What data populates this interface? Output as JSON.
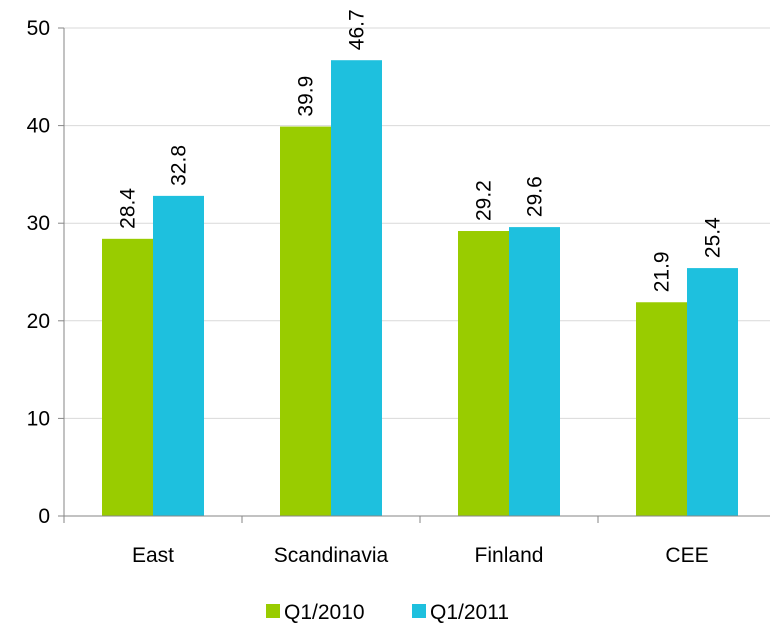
{
  "chart_data": {
    "type": "bar",
    "title": "",
    "xlabel": "",
    "ylabel": "",
    "categories": [
      "East",
      "Scandinavia",
      "Finland",
      "CEE"
    ],
    "series": [
      {
        "name": "Q1/2010",
        "color": "#99cc00",
        "values": [
          28.4,
          39.9,
          29.2,
          21.9
        ]
      },
      {
        "name": "Q1/2011",
        "color": "#1ec0de",
        "values": [
          32.8,
          46.7,
          29.6,
          25.4
        ]
      }
    ],
    "ylim": [
      0,
      50
    ],
    "yticks": [
      0,
      10,
      20,
      30,
      40,
      50
    ],
    "grid": true,
    "legend_position": "bottom",
    "value_labels": "rotated-above-bars"
  }
}
